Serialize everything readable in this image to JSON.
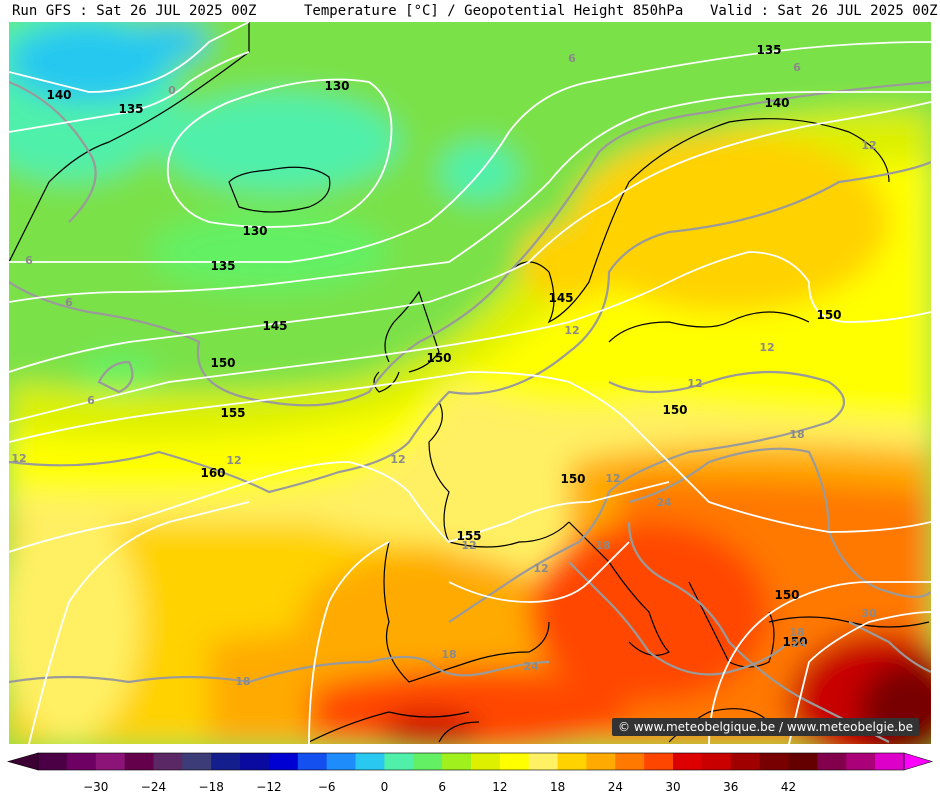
{
  "header": {
    "run": "Run GFS : Sat 26 JUL 2025 00Z",
    "title": "Temperature [°C] / Geopotential Height 850hPa",
    "valid": "Valid : Sat 26 JUL 2025 00Z"
  },
  "credit": "© www.meteobelgique.be / www.meteobelgie.be",
  "legend": {
    "colors": [
      "#4b0046",
      "#6e0064",
      "#8c1478",
      "#64004b",
      "#5a2864",
      "#3c3c78",
      "#141e8c",
      "#0a0aa0",
      "#0000d2",
      "#1450f0",
      "#1e8cfa",
      "#28c8f0",
      "#50f0aa",
      "#64f064",
      "#a0f01e",
      "#dcf000",
      "#ffff00",
      "#fff064",
      "#ffd200",
      "#ffaa00",
      "#ff7800",
      "#ff4600",
      "#dc0000",
      "#c80000",
      "#a00000",
      "#780000",
      "#640000",
      "#82004b",
      "#aa0078",
      "#dc00c8"
    ],
    "ticks": [
      "−30",
      "−24",
      "−18",
      "−12",
      "−6",
      "0",
      "6",
      "12",
      "18",
      "24",
      "30",
      "36",
      "42"
    ]
  },
  "height_labels": [
    "135",
    "140",
    "130",
    "135",
    "140",
    "130",
    "135",
    "145",
    "150",
    "150",
    "155",
    "160",
    "150",
    "145",
    "150",
    "150",
    "155",
    "150",
    "150"
  ],
  "temp_labels": [
    "6",
    "6",
    "6",
    "0",
    "6",
    "6",
    "12",
    "12",
    "12",
    "12",
    "12",
    "12",
    "12",
    "12",
    "12",
    "12",
    "18",
    "18",
    "18",
    "18",
    "18",
    "24",
    "24",
    "24",
    "30"
  ]
}
